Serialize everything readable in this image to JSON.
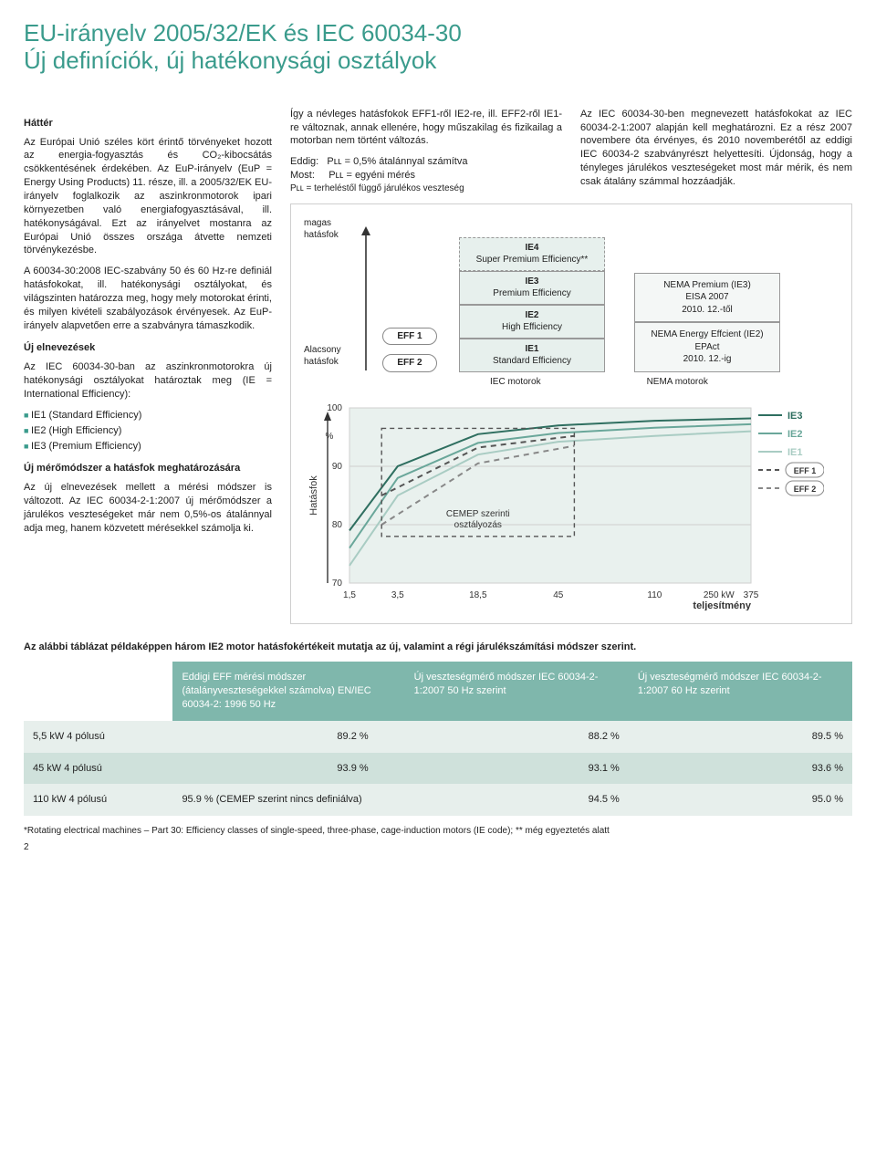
{
  "title_line1": "EU-irányelv 2005/32/EK és IEC 60034-30",
  "title_line2": "Új definíciók, új hatékonysági osztályok",
  "left": {
    "h1": "Háttér",
    "p1": "Az Európai Unió széles kört érintő törvényeket hozott az energia-fogyasztás és CO₂-kibocsátás csökkentésének érdekében. Az EuP-irányelv (EuP = Energy Using Products) 11. része, ill. a 2005/32/EK EU-irányelv foglalkozik az aszinkronmotorok ipari környezetben való energiafogyasztásával, ill. hatékonyságával. Ezt az irányelvet mostanra az Európai Unió összes országa átvette nemzeti törvénykezésbe.",
    "p2": "A 60034-30:2008 IEC-szabvány 50 és 60 Hz-re definiál hatásfokokat, ill. hatékonysági osztályokat, és világszinten határozza meg, hogy mely motorokat érinti, és milyen kivételi szabályozások érvényesek. Az EuP-irányelv alapvetően erre a szabványra támaszkodik.",
    "h2": "Új elnevezések",
    "p3": "Az IEC 60034-30-ban az aszinkronmotorokra új hatékonysági osztályokat határoztak meg (IE = International Efficiency):",
    "li1": "IE1 (Standard Efficiency)",
    "li2": "IE2 (High Efficiency)",
    "li3": "IE3 (Premium Efficiency)",
    "h3": "Új mérőmódszer a hatásfok meghatározására",
    "p4": "Az új elnevezések mellett a mérési módszer is változott. Az IEC 60034-2-1:2007 új mérőmódszer a járulékos veszteségeket már nem 0,5%-os átalánnyal adja meg, hanem közvetett mérésekkel számolja ki."
  },
  "mid": {
    "p1": "Így a névleges hatásfokok EFF1-ről IE2-re, ill. EFF2-ről IE1-re változnak, annak ellenére, hogy műszakilag és fizikailag a motorban nem történt változás.",
    "eddig_lbl": "Eddig:",
    "eddig_val": "Pʟʟ = 0,5% átalánnyal számítva",
    "most_lbl": "Most:",
    "most_val": "Pʟʟ = egyéni mérés",
    "pll_def": "Pʟʟ = terheléstől függő járulékos veszteség"
  },
  "rightcol": {
    "p1": "Az IEC 60034-30-ben megnevezett hatásfokokat az IEC 60034-2-1:2007 alapján kell meghatározni. Ez a rész 2007 novembere óta érvényes, és 2010 novemberétől az eddigi IEC 60034-2 szabványrészt helyettesíti. Újdonság, hogy a tényleges járulékos veszteségeket most már mérik, és nem csak átalány számmal hozzáadják."
  },
  "diagram": {
    "y_high": "magas hatásfok",
    "y_low": "Alacsony hatásfok",
    "eff1": "EFF 1",
    "eff2": "EFF 2",
    "ie4_t": "IE4",
    "ie4_s": "Super Premium Efficiency**",
    "ie3_t": "IE3",
    "ie3_s": "Premium Efficiency",
    "ie2_t": "IE2",
    "ie2_s": "High Efficiency",
    "ie1_t": "IE1",
    "ie1_s": "Standard Efficiency",
    "nema1_t": "NEMA Premium (IE3)",
    "nema1_s": "EISA 2007",
    "nema1_d": "2010. 12.-től",
    "nema2_t": "NEMA Energy Effcient (IE2) EPAct",
    "nema2_d": "2010. 12.-ig",
    "axis_iec": "IEC motorok",
    "axis_nema": "NEMA motorok"
  },
  "chart": {
    "ylabel": "Hatásfok",
    "y_pct": "%",
    "y_ticks": [
      "100",
      "90",
      "80",
      "70"
    ],
    "x_ticks": [
      "1,5",
      "3,5",
      "18,5",
      "45",
      "110",
      "250 kW",
      "375"
    ],
    "x_label_bottom": "teljesítmény",
    "box_l1": "CEMEP szerinti",
    "box_l2": "osztályozás",
    "colors": {
      "bg": "#e9f1ee",
      "grid": "#cfcfcf",
      "ie3": "#2f6f60",
      "ie2": "#6aa79a",
      "ie1": "#a9ccc3",
      "eff1_dash": "#555555",
      "eff2_dash": "#888888"
    },
    "ylim": [
      70,
      100
    ],
    "series": {
      "ie3": [
        [
          0,
          79
        ],
        [
          60,
          90
        ],
        [
          160,
          95.5
        ],
        [
          260,
          97
        ],
        [
          380,
          97.8
        ],
        [
          500,
          98.2
        ]
      ],
      "ie2": [
        [
          0,
          76
        ],
        [
          60,
          88
        ],
        [
          160,
          94
        ],
        [
          260,
          95.7
        ],
        [
          380,
          96.6
        ],
        [
          500,
          97.2
        ]
      ],
      "ie1": [
        [
          0,
          73
        ],
        [
          60,
          85
        ],
        [
          160,
          92
        ],
        [
          260,
          94.2
        ],
        [
          380,
          95.2
        ],
        [
          500,
          96.0
        ]
      ],
      "eff1": [
        [
          40,
          85
        ],
        [
          160,
          93.2
        ],
        [
          280,
          95.2
        ]
      ],
      "eff2": [
        [
          40,
          80
        ],
        [
          160,
          90.5
        ],
        [
          280,
          93.5
        ]
      ]
    },
    "legend": [
      "IE3",
      "IE2",
      "IE1",
      "EFF 1",
      "EFF 2"
    ]
  },
  "table": {
    "intro": "Az alábbi táblázat példaképpen három IE2 motor hatásfokértékeit mutatja az új, valamint a régi járulékszámítási módszer szerint.",
    "h1": "Eddigi EFF mérési módszer (átalányveszteségekkel számolva) EN/IEC 60034-2: 1996 50 Hz",
    "h2": "Új veszteségmérő módszer IEC 60034-2-1:2007 50 Hz szerint",
    "h3": "Új veszteségmérő módszer IEC 60034-2-1:2007 60 Hz szerint",
    "r1c1": "5,5 kW 4 pólusú",
    "r1c2": "89.2 %",
    "r1c3": "88.2 %",
    "r1c4": "89.5 %",
    "r2c1": "45 kW 4 pólusú",
    "r2c2": "93.9 %",
    "r2c3": "93.1 %",
    "r2c4": "93.6 %",
    "r3c1": "110 kW 4 pólusú",
    "r3c2": "95.9 % (CEMEP szerint nincs definiálva)",
    "r3c3": "94.5 %",
    "r3c4": "95.0 %"
  },
  "footnote": "*Rotating electrical machines – Part 30: Efficiency classes of single-speed, three-phase, cage-induction motors (IE code); ** még egyeztetés alatt",
  "pagenum": "2"
}
